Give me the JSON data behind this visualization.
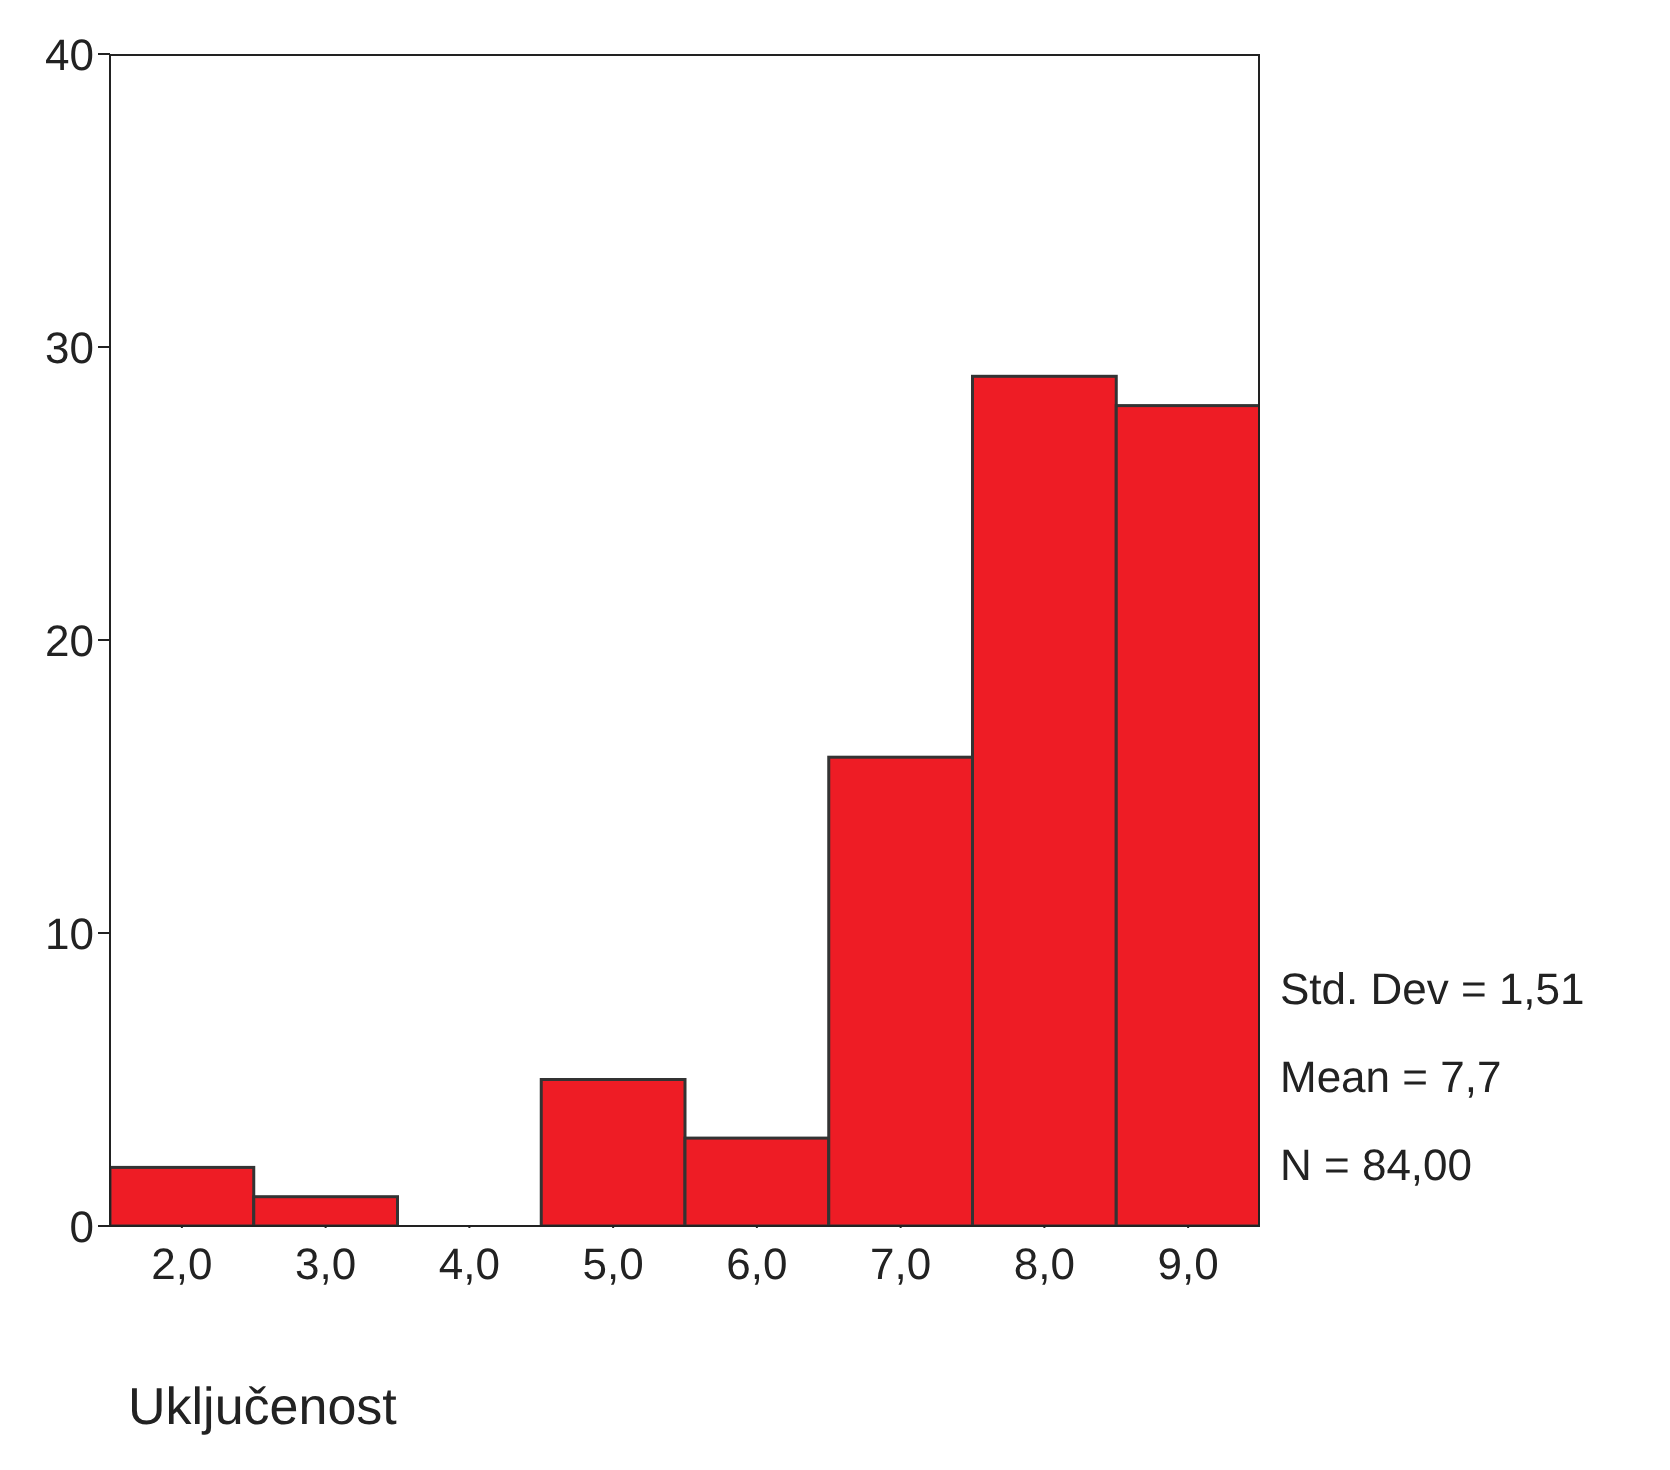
{
  "chart_data": {
    "type": "histogram",
    "xlabel": "Uključenost",
    "bins": [
      1.5,
      2.5,
      3.5,
      4.5,
      5.5,
      6.5,
      7.5,
      8.5,
      9.5
    ],
    "values": [
      2,
      1,
      0,
      5,
      3,
      16,
      29,
      28
    ],
    "color": "#ee1c25",
    "xlim": [
      1.5,
      9.5
    ],
    "xticks": [
      {
        "value": 2,
        "label": "2,0"
      },
      {
        "value": 3,
        "label": "3,0"
      },
      {
        "value": 4,
        "label": "4,0"
      },
      {
        "value": 5,
        "label": "5,0"
      },
      {
        "value": 6,
        "label": "6,0"
      },
      {
        "value": 7,
        "label": "7,0"
      },
      {
        "value": 8,
        "label": "8,0"
      },
      {
        "value": 9,
        "label": "9,0"
      }
    ],
    "ylim": [
      0,
      40
    ],
    "yticks": [
      0,
      10,
      20,
      30,
      40
    ],
    "grid": false,
    "legend": false,
    "annotations": [
      "Std. Dev = 1,51",
      "Mean = 7,7",
      "N = 84,00"
    ]
  }
}
